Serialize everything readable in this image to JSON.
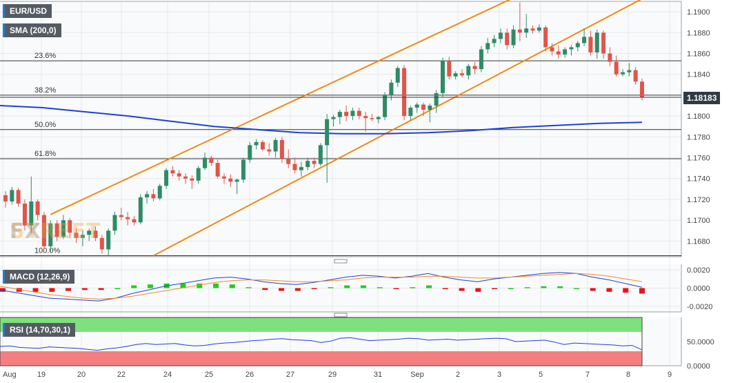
{
  "chart_data": [
    {
      "type": "candlestick",
      "title": "EUR/USD",
      "indicator_label": "SMA (200,0)",
      "last_price_label": "1.18183",
      "x_labels": [
        "Aug",
        "19",
        "20",
        "22",
        "24",
        "25",
        "26",
        "27",
        "29",
        "31",
        "Sep",
        "2",
        "3",
        "5",
        "7",
        "8",
        "9"
      ],
      "y_ticks": [
        "1.1900",
        "1.1880",
        "1.1860",
        "1.1840",
        "1.1820",
        "1.1800",
        "1.1780",
        "1.1760",
        "1.1740",
        "1.1720",
        "1.1700",
        "1.1680"
      ],
      "ylim": [
        1.1665,
        1.191
      ],
      "fibonacci": [
        {
          "label": "23.6%",
          "value": 1.1853
        },
        {
          "label": "38.2%",
          "value": 1.182
        },
        {
          "label": "50.0%",
          "value": 1.1787
        },
        {
          "label": "61.8%",
          "value": 1.1759
        },
        {
          "label": "100.0%",
          "value": 1.1666
        }
      ],
      "channel": {
        "upper": [
          [
            1.17055,
            1.19105
          ]
        ],
        "lower": [
          [
            1.1666,
            1.18865
          ]
        ]
      },
      "candles": [
        [
          1.1724,
          1.1728,
          1.1712,
          1.1718
        ],
        [
          1.1718,
          1.1732,
          1.1715,
          1.1729
        ],
        [
          1.1729,
          1.1731,
          1.1713,
          1.1716
        ],
        [
          1.1716,
          1.172,
          1.169,
          1.1695
        ],
        [
          1.1695,
          1.1742,
          1.1688,
          1.1718
        ],
        [
          1.1718,
          1.172,
          1.17,
          1.1705
        ],
        [
          1.1705,
          1.1708,
          1.1672,
          1.1675
        ],
        [
          1.1675,
          1.17,
          1.167,
          1.1697
        ],
        [
          1.1697,
          1.17,
          1.168,
          1.1684
        ],
        [
          1.1684,
          1.1705,
          1.1682,
          1.17
        ],
        [
          1.17,
          1.1702,
          1.1683,
          1.1688
        ],
        [
          1.1688,
          1.1692,
          1.1678,
          1.1683
        ],
        [
          1.1683,
          1.169,
          1.1675,
          1.1686
        ],
        [
          1.1686,
          1.1692,
          1.168,
          1.169
        ],
        [
          1.169,
          1.1694,
          1.168,
          1.1683
        ],
        [
          1.1683,
          1.1686,
          1.1668,
          1.1672
        ],
        [
          1.1672,
          1.1692,
          1.1666,
          1.169
        ],
        [
          1.169,
          1.1708,
          1.1686,
          1.1705
        ],
        [
          1.1705,
          1.1712,
          1.17,
          1.1703
        ],
        [
          1.1703,
          1.1708,
          1.1695,
          1.1701
        ],
        [
          1.1701,
          1.1704,
          1.1695,
          1.1698
        ],
        [
          1.1698,
          1.1725,
          1.1696,
          1.1722
        ],
        [
          1.1722,
          1.1728,
          1.1716,
          1.1725
        ],
        [
          1.1725,
          1.173,
          1.1718,
          1.1721
        ],
        [
          1.1721,
          1.1735,
          1.1719,
          1.1733
        ],
        [
          1.1733,
          1.175,
          1.173,
          1.1748
        ],
        [
          1.1748,
          1.1752,
          1.1742,
          1.1745
        ],
        [
          1.1745,
          1.1748,
          1.1738,
          1.1742
        ],
        [
          1.1742,
          1.1745,
          1.1735,
          1.174
        ],
        [
          1.174,
          1.1743,
          1.173,
          1.1738
        ],
        [
          1.1738,
          1.1752,
          1.1735,
          1.175
        ],
        [
          1.175,
          1.1765,
          1.1748,
          1.176
        ],
        [
          1.176,
          1.1762,
          1.1752,
          1.1755
        ],
        [
          1.1755,
          1.1758,
          1.174,
          1.1742
        ],
        [
          1.1742,
          1.1745,
          1.1735,
          1.174
        ],
        [
          1.174,
          1.1744,
          1.1732,
          1.1737
        ],
        [
          1.1737,
          1.174,
          1.1725,
          1.1739
        ],
        [
          1.1739,
          1.176,
          1.1736,
          1.1758
        ],
        [
          1.1758,
          1.1775,
          1.1755,
          1.1772
        ],
        [
          1.1772,
          1.1778,
          1.1768,
          1.1775
        ],
        [
          1.1775,
          1.1777,
          1.1766,
          1.1768
        ],
        [
          1.1768,
          1.1774,
          1.1762,
          1.1766
        ],
        [
          1.1766,
          1.1779,
          1.176,
          1.1777
        ],
        [
          1.1777,
          1.178,
          1.1755,
          1.1759
        ],
        [
          1.1759,
          1.1768,
          1.175,
          1.1754
        ],
        [
          1.1754,
          1.176,
          1.1745,
          1.1748
        ],
        [
          1.1748,
          1.1756,
          1.1742,
          1.1751
        ],
        [
          1.1751,
          1.176,
          1.1748,
          1.1757
        ],
        [
          1.1757,
          1.176,
          1.175,
          1.1754
        ],
        [
          1.1754,
          1.1774,
          1.1752,
          1.1772
        ],
        [
          1.1772,
          1.1802,
          1.1736,
          1.1797
        ],
        [
          1.1797,
          1.1801,
          1.179,
          1.1799
        ],
        [
          1.1799,
          1.1806,
          1.1792,
          1.1804
        ],
        [
          1.1804,
          1.181,
          1.1795,
          1.18
        ],
        [
          1.18,
          1.1808,
          1.1796,
          1.1805
        ],
        [
          1.1805,
          1.1808,
          1.1797,
          1.18
        ],
        [
          1.18,
          1.1804,
          1.1785,
          1.1798
        ],
        [
          1.1798,
          1.1802,
          1.1795,
          1.1797
        ],
        [
          1.1797,
          1.18,
          1.1793,
          1.1799
        ],
        [
          1.1799,
          1.1823,
          1.1796,
          1.182
        ],
        [
          1.182,
          1.1835,
          1.1815,
          1.1832
        ],
        [
          1.1832,
          1.1848,
          1.1828,
          1.1846
        ],
        [
          1.1846,
          1.1849,
          1.1796,
          1.18
        ],
        [
          1.18,
          1.181,
          1.1796,
          1.1808
        ],
        [
          1.1808,
          1.1813,
          1.1803,
          1.1811
        ],
        [
          1.1811,
          1.1813,
          1.18,
          1.1806
        ],
        [
          1.1806,
          1.1812,
          1.1794,
          1.181
        ],
        [
          1.181,
          1.1825,
          1.1803,
          1.1822
        ],
        [
          1.1822,
          1.1856,
          1.1818,
          1.1853
        ],
        [
          1.1853,
          1.1857,
          1.1835,
          1.1838
        ],
        [
          1.1838,
          1.1843,
          1.1835,
          1.1841
        ],
        [
          1.1841,
          1.1845,
          1.1837,
          1.1839
        ],
        [
          1.1839,
          1.185,
          1.1835,
          1.1848
        ],
        [
          1.1848,
          1.1852,
          1.184,
          1.1845
        ],
        [
          1.1845,
          1.1867,
          1.1842,
          1.1864
        ],
        [
          1.1864,
          1.1875,
          1.186,
          1.187
        ],
        [
          1.187,
          1.1878,
          1.1866,
          1.1874
        ],
        [
          1.1874,
          1.1884,
          1.187,
          1.188
        ],
        [
          1.188,
          1.1884,
          1.1864,
          1.1868
        ],
        [
          1.1868,
          1.1887,
          1.1865,
          1.1883
        ],
        [
          1.1883,
          1.1909,
          1.1872,
          1.188
        ],
        [
          1.188,
          1.1898,
          1.1875,
          1.1884
        ],
        [
          1.1884,
          1.1887,
          1.1879,
          1.1882
        ],
        [
          1.1882,
          1.1888,
          1.188,
          1.1885
        ],
        [
          1.1885,
          1.1887,
          1.1862,
          1.1866
        ],
        [
          1.1866,
          1.187,
          1.1858,
          1.1862
        ],
        [
          1.1862,
          1.1868,
          1.1855,
          1.1859
        ],
        [
          1.1859,
          1.1866,
          1.1856,
          1.1864
        ],
        [
          1.1864,
          1.1868,
          1.1858,
          1.1866
        ],
        [
          1.1866,
          1.1872,
          1.1862,
          1.187
        ],
        [
          1.187,
          1.1884,
          1.1867,
          1.1876
        ],
        [
          1.1876,
          1.1882,
          1.1858,
          1.1861
        ],
        [
          1.1861,
          1.1883,
          1.1855,
          1.188
        ],
        [
          1.188,
          1.1882,
          1.1855,
          1.186
        ],
        [
          1.186,
          1.1866,
          1.1848,
          1.1852
        ],
        [
          1.1852,
          1.1858,
          1.1838,
          1.184
        ],
        [
          1.184,
          1.1845,
          1.1838,
          1.1842
        ],
        [
          1.1842,
          1.1851,
          1.1838,
          1.1844
        ],
        [
          1.1844,
          1.1847,
          1.183,
          1.1833
        ],
        [
          1.1833,
          1.1836,
          1.1815,
          1.1818
        ]
      ],
      "sma200": [
        1.181,
        1.1808,
        1.1804,
        1.18,
        1.1795,
        1.179,
        1.1787,
        1.1784,
        1.1783,
        1.1783,
        1.1784,
        1.1786,
        1.1789,
        1.1791,
        1.1793,
        1.1794
      ]
    },
    {
      "type": "line",
      "title": "MACD (12,26,9)",
      "y_ticks": [
        "0.0020",
        "0.0000",
        "-0.0020"
      ],
      "ylim": [
        -0.0026,
        0.0026
      ],
      "series": [
        {
          "name": "MACD",
          "color": "#1f3fd6",
          "values": [
            -0.0002,
            -0.0005,
            -0.0008,
            -0.0011,
            -0.0012,
            -0.0013,
            -0.0014,
            -0.0011,
            -0.0006,
            -0.0002,
            0.0002,
            0.0005,
            0.0008,
            0.0011,
            0.0012,
            0.001,
            0.0007,
            0.0005,
            0.0004,
            0.0006,
            0.0009,
            0.0012,
            0.0014,
            0.0013,
            0.0011,
            0.0013,
            0.0016,
            0.0012,
            0.0009,
            0.0007,
            0.001,
            0.0012,
            0.0014,
            0.0016,
            0.0017,
            0.0016,
            0.0012,
            0.0009,
            0.0005,
            0.0001
          ]
        },
        {
          "name": "Signal",
          "color": "#f08a24",
          "values": [
            0.0002,
            -0.0001,
            -0.0004,
            -0.0007,
            -0.0009,
            -0.0011,
            -0.0012,
            -0.0011,
            -0.0009,
            -0.0006,
            -0.0003,
            0.0,
            0.0003,
            0.0006,
            0.0008,
            0.0009,
            0.0009,
            0.0008,
            0.0007,
            0.0007,
            0.0008,
            0.0009,
            0.0011,
            0.0012,
            0.0012,
            0.0012,
            0.0013,
            0.0013,
            0.0012,
            0.0011,
            0.0011,
            0.0012,
            0.0013,
            0.0014,
            0.0015,
            0.0016,
            0.0015,
            0.0013,
            0.001,
            0.0007
          ]
        }
      ],
      "histogram": [
        -0.0004,
        -0.0004,
        -0.0004,
        -0.0004,
        -0.0003,
        -0.0002,
        -0.0002,
        0.0,
        0.0003,
        0.0004,
        0.0005,
        0.0005,
        0.0005,
        0.0005,
        0.0004,
        0.0001,
        -0.0002,
        -0.0003,
        -0.0003,
        -0.0001,
        0.0001,
        0.0003,
        0.0003,
        0.0001,
        -0.0001,
        0.0001,
        0.0003,
        -0.0001,
        -0.0003,
        -0.0004,
        -0.0001,
        0.0,
        0.0001,
        0.0002,
        0.0002,
        0.0,
        -0.0003,
        -0.0004,
        -0.0005,
        -0.0006
      ]
    },
    {
      "type": "line",
      "title": "RSI (14,70,30,1)",
      "y_ticks": [
        "50.0000",
        "0.0000"
      ],
      "ylim": [
        0,
        100
      ],
      "bands": {
        "overbought": 70,
        "oversold": 30
      },
      "series": [
        {
          "name": "RSI",
          "color": "#1f3fd6",
          "values": [
            40,
            41,
            38,
            37,
            36,
            39,
            38,
            37,
            36,
            34,
            32,
            35,
            37,
            40,
            44,
            46,
            44,
            45,
            46,
            43,
            41,
            42,
            45,
            47,
            48,
            50,
            52,
            53,
            55,
            56,
            54,
            53,
            52,
            48,
            51,
            57,
            58,
            55,
            52,
            53,
            54,
            55,
            57,
            56,
            53,
            54,
            55,
            53,
            54,
            55,
            56,
            57,
            56,
            50,
            51,
            52,
            53,
            49,
            44,
            47,
            46,
            45,
            44,
            43,
            41,
            42,
            33
          ]
        }
      ]
    }
  ]
}
